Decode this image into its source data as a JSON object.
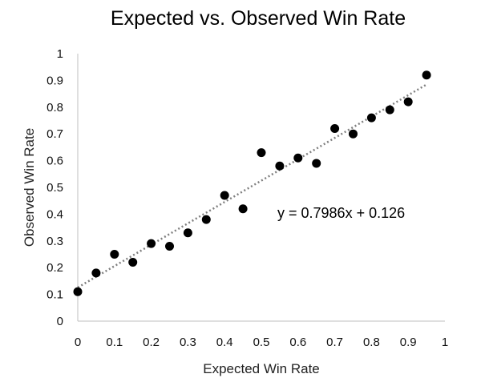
{
  "chart_data": {
    "type": "scatter",
    "title": "Expected vs. Observed Win Rate",
    "xlabel": "Expected Win Rate",
    "ylabel": "Observed Win Rate",
    "xlim": [
      0,
      1
    ],
    "ylim": [
      0,
      1
    ],
    "xticks": [
      "0",
      "0.1",
      "0.2",
      "0.3",
      "0.4",
      "0.5",
      "0.6",
      "0.7",
      "0.8",
      "0.9",
      "1"
    ],
    "yticks": [
      "0",
      "0.1",
      "0.2",
      "0.3",
      "0.4",
      "0.5",
      "0.6",
      "0.7",
      "0.8",
      "0.9",
      "1"
    ],
    "grid": false,
    "legend": false,
    "point_color": "#000000",
    "trendline_color": "#7f7f7f",
    "points": [
      {
        "x": 0.0,
        "y": 0.11
      },
      {
        "x": 0.05,
        "y": 0.18
      },
      {
        "x": 0.1,
        "y": 0.25
      },
      {
        "x": 0.15,
        "y": 0.22
      },
      {
        "x": 0.2,
        "y": 0.29
      },
      {
        "x": 0.25,
        "y": 0.28
      },
      {
        "x": 0.3,
        "y": 0.33
      },
      {
        "x": 0.35,
        "y": 0.38
      },
      {
        "x": 0.4,
        "y": 0.47
      },
      {
        "x": 0.45,
        "y": 0.42
      },
      {
        "x": 0.5,
        "y": 0.63
      },
      {
        "x": 0.55,
        "y": 0.58
      },
      {
        "x": 0.6,
        "y": 0.61
      },
      {
        "x": 0.65,
        "y": 0.59
      },
      {
        "x": 0.7,
        "y": 0.72
      },
      {
        "x": 0.75,
        "y": 0.7
      },
      {
        "x": 0.8,
        "y": 0.76
      },
      {
        "x": 0.85,
        "y": 0.79
      },
      {
        "x": 0.9,
        "y": 0.82
      },
      {
        "x": 0.95,
        "y": 0.92
      }
    ],
    "trendline": {
      "slope": 0.7986,
      "intercept": 0.126,
      "x_range": [
        0,
        0.95
      ],
      "equation_label": "y = 0.7986x + 0.126"
    }
  }
}
